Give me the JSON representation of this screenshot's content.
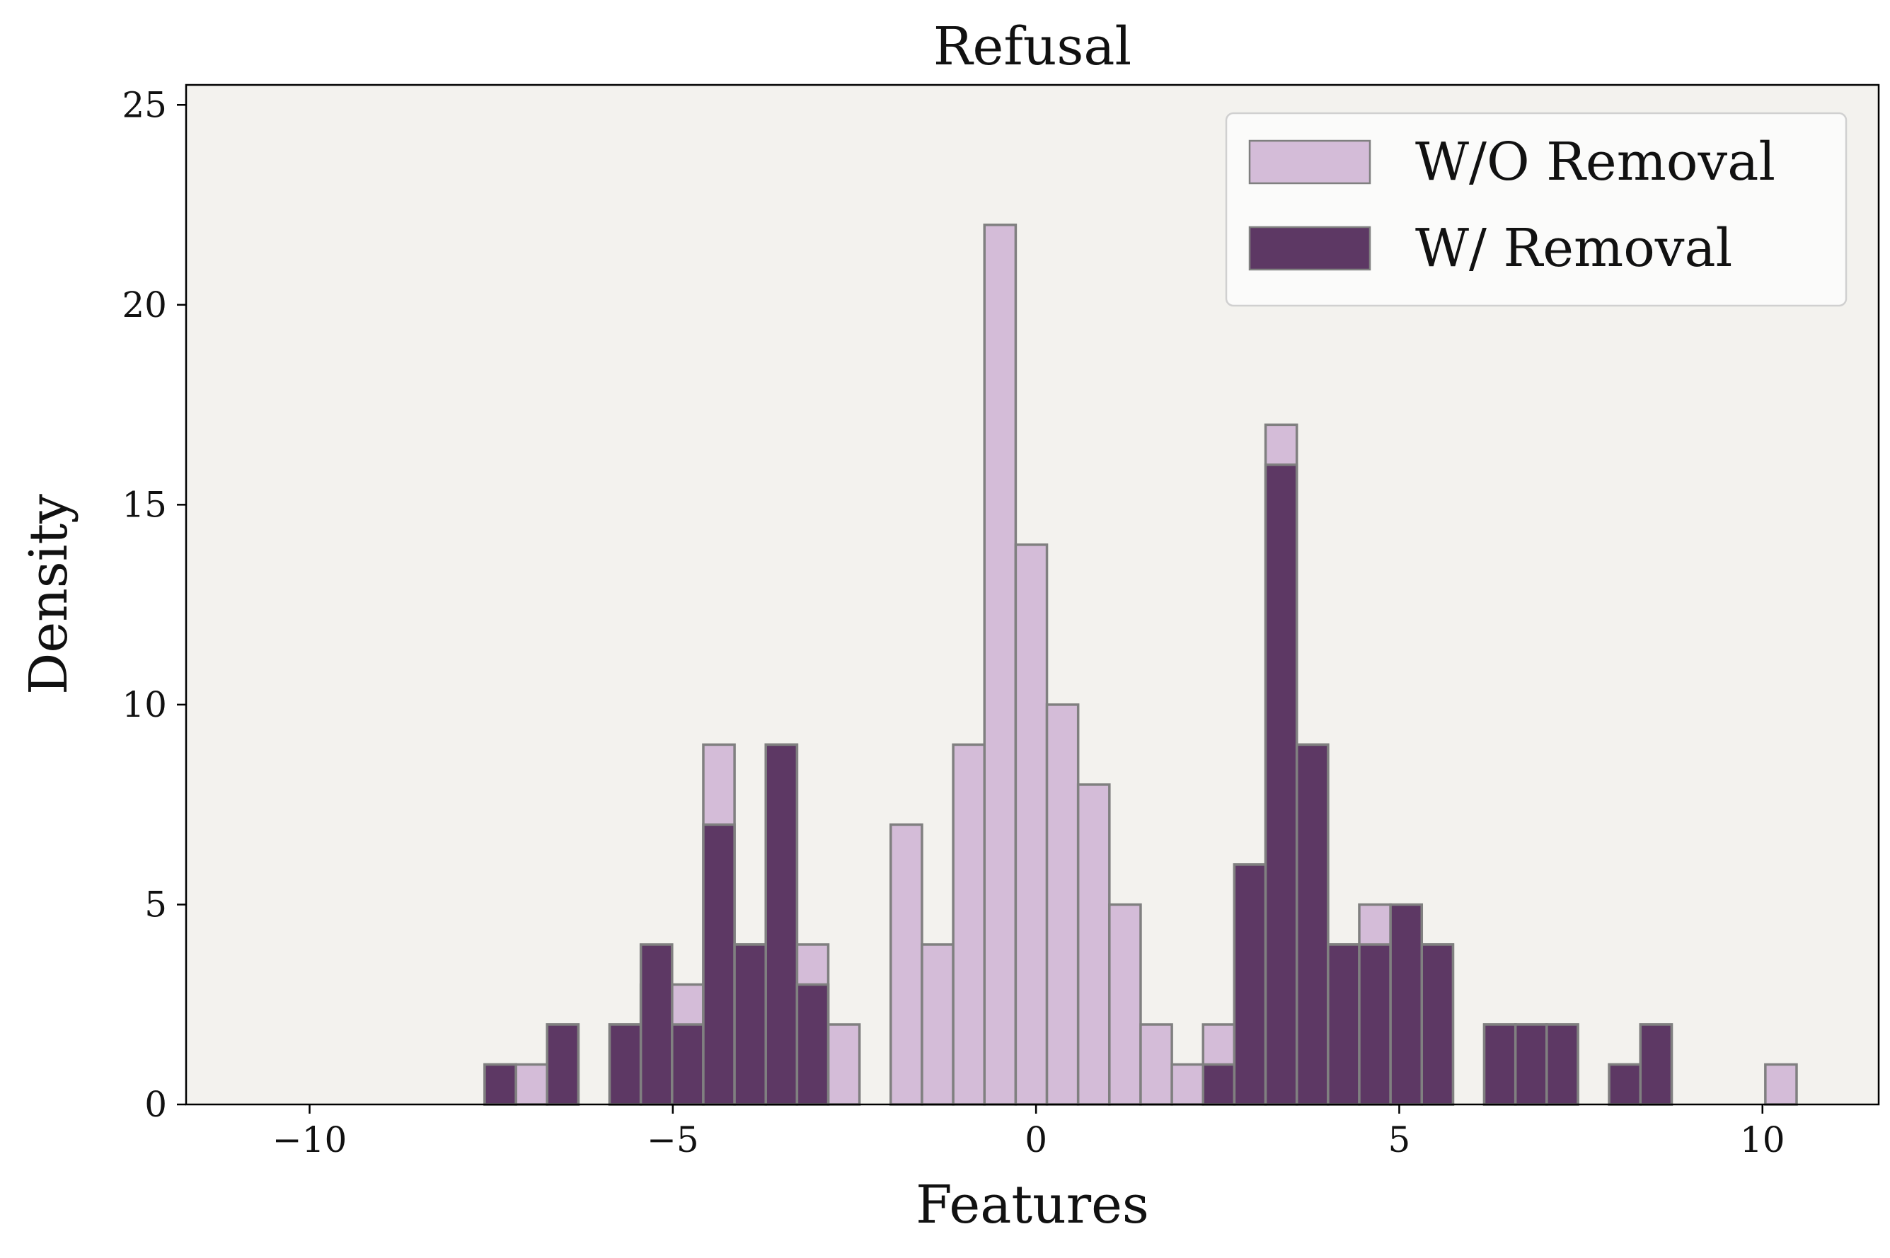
{
  "chart_data": {
    "type": "bar",
    "subtype": "overlaid-histogram",
    "title": "Refusal",
    "xlabel": "Features",
    "ylabel": "Density",
    "xlim": [
      -11.7,
      11.6
    ],
    "ylim": [
      0,
      25.5
    ],
    "xticks": [
      -10,
      -5,
      0,
      5,
      10
    ],
    "xtick_labels": [
      "−10",
      "−5",
      "0",
      "5",
      "10"
    ],
    "yticks": [
      0,
      5,
      10,
      15,
      20,
      25
    ],
    "ytick_labels": [
      "0",
      "5",
      "10",
      "15",
      "20",
      "25"
    ],
    "bins": {
      "start": -10.6,
      "width": 0.43,
      "count": 49
    },
    "grid": false,
    "legend": {
      "position": "top-right"
    },
    "colors": {
      "plot_background": "#f3f2ee",
      "bar_edge": "#808080",
      "axis": "#000000"
    },
    "series": [
      {
        "name": "W/O Removal",
        "color": "#d4bcd8",
        "values": [
          0,
          0,
          0,
          0,
          0,
          0,
          0,
          1,
          1,
          2,
          0,
          2,
          3,
          3,
          9,
          4,
          9,
          4,
          2,
          0,
          7,
          4,
          9,
          22,
          14,
          10,
          8,
          5,
          2,
          1,
          2,
          6,
          17,
          9,
          4,
          5,
          4,
          4,
          0,
          2,
          2,
          2,
          0,
          1,
          2,
          0,
          0,
          0,
          1
        ]
      },
      {
        "name": "W/ Removal",
        "color": "#5d3864",
        "values": [
          0,
          0,
          0,
          0,
          0,
          0,
          0,
          1,
          0,
          2,
          0,
          2,
          4,
          2,
          7,
          4,
          9,
          3,
          0,
          0,
          0,
          0,
          0,
          0,
          0,
          0,
          0,
          0,
          0,
          0,
          1,
          6,
          16,
          9,
          4,
          4,
          5,
          4,
          0,
          2,
          2,
          2,
          0,
          1,
          2,
          0,
          0,
          0,
          0
        ]
      }
    ]
  }
}
